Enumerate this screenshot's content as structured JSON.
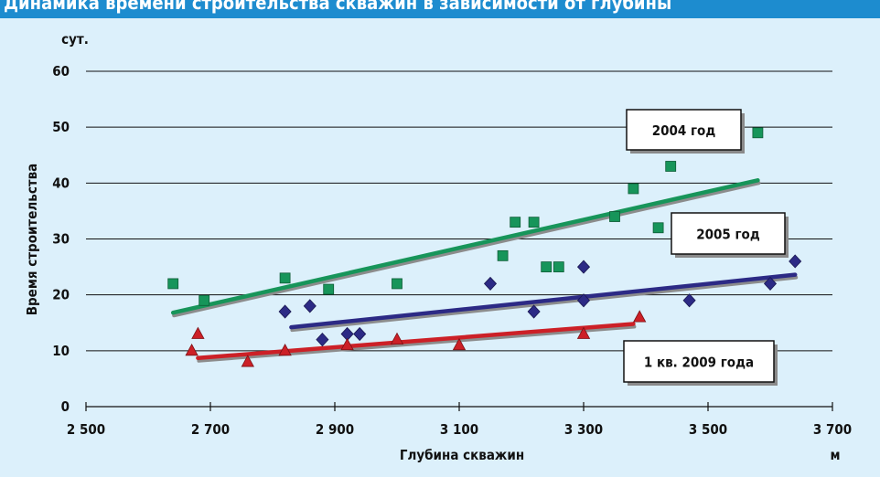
{
  "header": {
    "text": "Динамика времени строительства скважин в зависимости от глубины"
  },
  "chart_data": {
    "type": "scatter",
    "title": "",
    "xlabel": "Глубина скважин",
    "xunit": "м",
    "ylabel": "Время строительства",
    "yunit": "сут.",
    "xlim": [
      2500,
      3700
    ],
    "ylim": [
      0,
      60
    ],
    "xticks": [
      2500,
      2700,
      2900,
      3100,
      3300,
      3500,
      3700
    ],
    "xtick_labels": [
      "2 500",
      "2 700",
      "2 900",
      "3 100",
      "3 300",
      "3 500",
      "3 700"
    ],
    "yticks": [
      0,
      10,
      20,
      30,
      40,
      50,
      60
    ],
    "ytick_labels": [
      "0",
      "10",
      "20",
      "30",
      "40",
      "50",
      "60"
    ],
    "grid": true,
    "series": [
      {
        "name": "2004 год",
        "marker": "square",
        "color": "#17955a",
        "x": [
          2640,
          2690,
          2820,
          2890,
          3000,
          3170,
          3190,
          3220,
          3240,
          3260,
          3350,
          3380,
          3420,
          3440,
          3580
        ],
        "y": [
          22,
          19,
          23,
          21,
          22,
          27,
          33,
          33,
          25,
          25,
          34,
          39,
          32,
          43,
          49
        ],
        "trend": {
          "x": [
            2640,
            3580
          ],
          "y": [
            16.8,
            40.5
          ]
        }
      },
      {
        "name": "2005 год",
        "marker": "diamond",
        "color": "#2c2a85",
        "x": [
          2820,
          2860,
          2880,
          2920,
          2940,
          3150,
          3220,
          3300,
          3300,
          3470,
          3600,
          3640
        ],
        "y": [
          17,
          18,
          12,
          13,
          13,
          22,
          17,
          25,
          19,
          19,
          22,
          26
        ],
        "trend": {
          "x": [
            2830,
            3640
          ],
          "y": [
            14.2,
            23.6
          ]
        }
      },
      {
        "name": "1 кв. 2009 года",
        "marker": "triangle",
        "color": "#cc2027",
        "x": [
          2670,
          2680,
          2760,
          2820,
          2920,
          3000,
          3100,
          3300,
          3390
        ],
        "y": [
          10,
          13,
          8,
          10,
          11,
          12,
          11,
          13,
          16
        ],
        "trend": {
          "x": [
            2680,
            3380
          ],
          "y": [
            8.7,
            14.8
          ]
        }
      }
    ],
    "legend_boxes": [
      {
        "text": "2004 год",
        "color": "#17955a"
      },
      {
        "text": "2005 год",
        "color": "#2c2a85"
      },
      {
        "text": "1 кв. 2009 года",
        "color": "#cc2027"
      }
    ]
  }
}
